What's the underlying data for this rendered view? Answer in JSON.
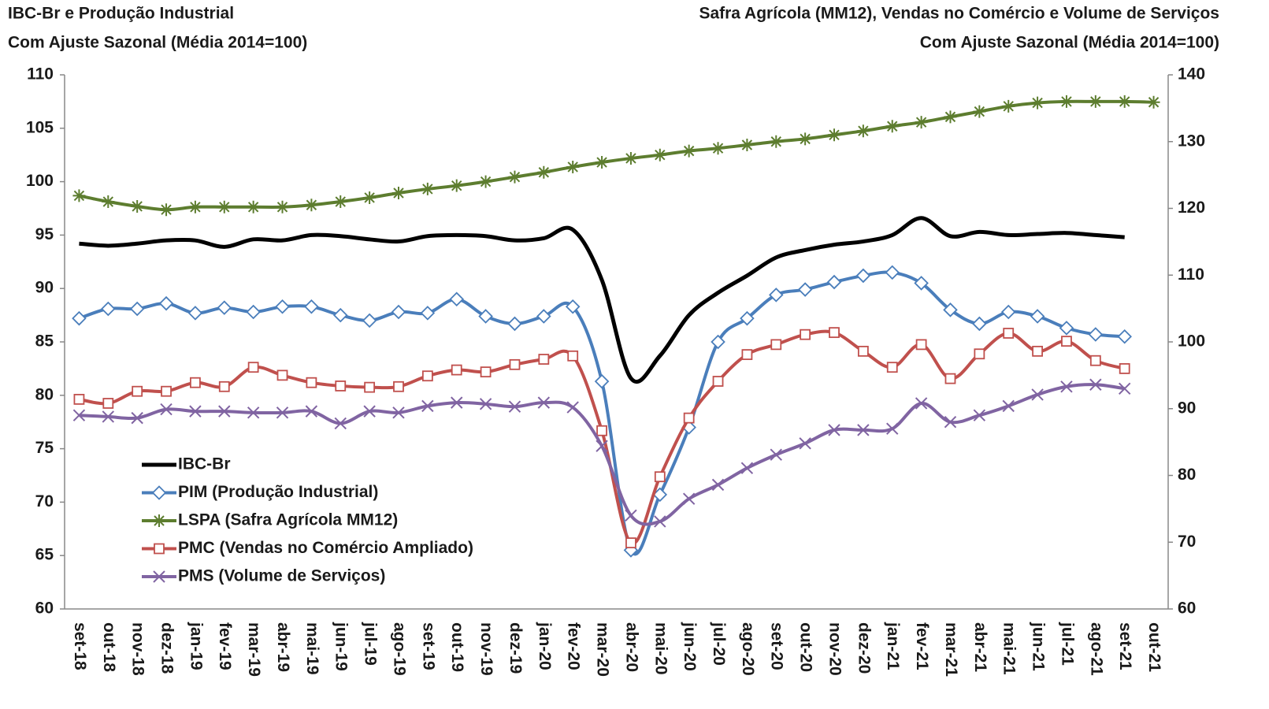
{
  "chart_data": {
    "type": "line",
    "title_left": [
      "IBC-Br e Produção  Industrial",
      "Com Ajuste Sazonal (Média 2014=100)"
    ],
    "title_right": [
      "Safra Agrícola (MM12), Vendas no Comércio e Volume de Serviços",
      "Com Ajuste Sazonal (Média 2014=100)"
    ],
    "categories": [
      "set-18",
      "out-18",
      "nov-18",
      "dez-18",
      "jan-19",
      "fev-19",
      "mar-19",
      "abr-19",
      "mai-19",
      "jun-19",
      "jul-19",
      "ago-19",
      "set-19",
      "out-19",
      "nov-19",
      "dez-19",
      "jan-20",
      "fev-20",
      "mar-20",
      "abr-20",
      "mai-20",
      "jun-20",
      "jul-20",
      "ago-20",
      "set-20",
      "out-20",
      "nov-20",
      "dez-20",
      "jan-21",
      "fev-21",
      "mar-21",
      "abr-21",
      "mai-21",
      "jun-21",
      "jul-21",
      "ago-21",
      "set-21",
      "out-21"
    ],
    "ylim": [
      60,
      110
    ],
    "yticks": [
      60,
      65,
      70,
      75,
      80,
      85,
      90,
      95,
      100,
      105,
      110
    ],
    "y2lim": [
      60,
      140
    ],
    "y2ticks": [
      60,
      70,
      80,
      90,
      100,
      110,
      120,
      130,
      140
    ],
    "legend": "left",
    "series": [
      {
        "name": "IBC-Br",
        "color": "#000000",
        "marker": "none",
        "values": [
          94.2,
          94.0,
          94.2,
          94.5,
          94.5,
          93.9,
          94.6,
          94.5,
          95.0,
          94.9,
          94.6,
          94.4,
          94.9,
          95.0,
          94.9,
          94.5,
          94.7,
          95.5,
          90.8,
          81.6,
          83.7,
          87.5,
          89.6,
          91.2,
          92.9,
          93.6,
          94.1,
          94.4,
          95.0,
          96.6,
          94.9,
          95.3,
          95.0,
          95.1,
          95.2,
          95.0,
          94.8,
          null
        ]
      },
      {
        "name": "PIM (Produção Industrial)",
        "color": "#4a7ebb",
        "marker": "diamond",
        "values": [
          87.2,
          88.1,
          88.1,
          88.6,
          87.7,
          88.2,
          87.8,
          88.3,
          88.3,
          87.5,
          87.0,
          87.8,
          87.7,
          89.0,
          87.4,
          86.7,
          87.4,
          88.3,
          81.3,
          65.5,
          70.7,
          77.0,
          85.0,
          87.2,
          89.4,
          89.9,
          90.6,
          91.2,
          91.5,
          90.5,
          88.0,
          86.7,
          87.8,
          87.4,
          86.3,
          85.7,
          85.5,
          null
        ]
      },
      {
        "name": "LSPA (Safra Agrícola MM12)",
        "color": "#5d7d2f",
        "marker": "asterisk",
        "axis": "y2",
        "values": [
          121.9,
          121.0,
          120.3,
          119.8,
          120.2,
          120.2,
          120.2,
          120.2,
          120.5,
          121.0,
          121.6,
          122.3,
          122.9,
          123.4,
          124.0,
          124.7,
          125.4,
          126.2,
          126.9,
          127.5,
          128.0,
          128.6,
          129.0,
          129.5,
          130.0,
          130.4,
          131.0,
          131.6,
          132.3,
          132.9,
          133.7,
          134.5,
          135.3,
          135.8,
          136.0,
          136.0,
          136.0,
          135.9
        ]
      },
      {
        "name": "PMC (Vendas no Comércio Ampliado)",
        "color": "#c0504d",
        "marker": "square",
        "axis": "y2",
        "values": [
          91.4,
          90.8,
          92.6,
          92.6,
          93.9,
          93.3,
          96.2,
          95.0,
          93.9,
          93.4,
          93.2,
          93.3,
          94.9,
          95.8,
          95.5,
          96.6,
          97.4,
          97.9,
          86.7,
          69.9,
          79.8,
          88.6,
          94.1,
          98.1,
          99.6,
          101.1,
          101.4,
          98.6,
          96.2,
          99.6,
          94.5,
          98.2,
          101.3,
          98.6,
          100.1,
          97.2,
          96.0,
          null
        ]
      },
      {
        "name": "PMS (Volume de Serviços)",
        "color": "#8064a2",
        "marker": "x",
        "axis": "y2",
        "values": [
          89.0,
          88.8,
          88.6,
          89.9,
          89.6,
          89.6,
          89.4,
          89.4,
          89.6,
          87.8,
          89.6,
          89.4,
          90.4,
          90.9,
          90.7,
          90.3,
          90.9,
          90.2,
          84.4,
          74.0,
          73.1,
          76.5,
          78.6,
          81.1,
          83.1,
          84.8,
          86.8,
          86.8,
          87.0,
          90.8,
          88.0,
          89.0,
          90.4,
          92.1,
          93.3,
          93.6,
          93.0,
          null
        ]
      }
    ]
  }
}
